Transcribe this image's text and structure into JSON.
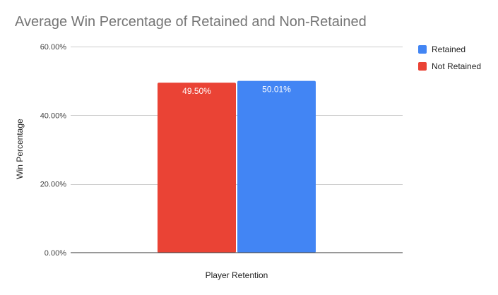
{
  "chart_data": {
    "type": "bar",
    "title": "Average Win Percentage of Retained and Non-Retained",
    "xlabel": "Player Retention",
    "ylabel": "Win Percentage",
    "ylim": [
      0,
      60
    ],
    "yticks": [
      0,
      20,
      40,
      60
    ],
    "ytick_labels": [
      "0.00%",
      "20.00%",
      "40.00%",
      "60.00%"
    ],
    "grid": true,
    "legend_position": "right",
    "series": [
      {
        "name": "Not Retained",
        "value": 49.5,
        "label": "49.50%",
        "color": "#ea4335"
      },
      {
        "name": "Retained",
        "value": 50.01,
        "label": "50.01%",
        "color": "#4285f4"
      }
    ],
    "legend": [
      {
        "name": "Retained",
        "color": "#4285f4"
      },
      {
        "name": "Not Retained",
        "color": "#ea4335"
      }
    ]
  }
}
